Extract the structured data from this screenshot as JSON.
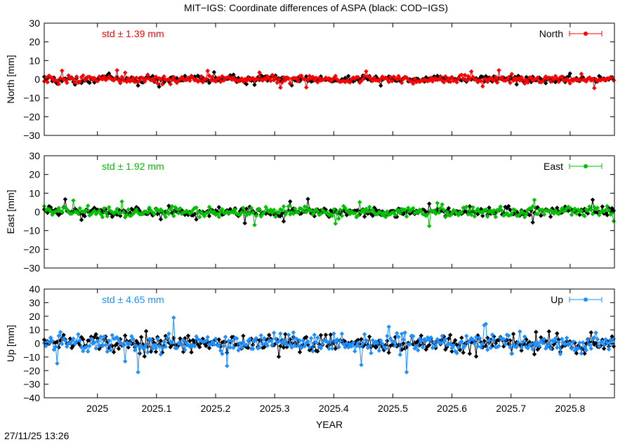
{
  "figure": {
    "title": "MIT−IGS: Coordinate differences of ASPA (black: COD−IGS)",
    "timestamp": "27/11/25 13:26",
    "xlabel": "YEAR"
  },
  "chart_data": [
    {
      "type": "line",
      "panel": "north",
      "ylabel": "North [mm]",
      "ylim": [
        -30,
        30
      ],
      "yticks": [
        30,
        20,
        10,
        0,
        -10,
        -20,
        -30
      ],
      "ytick_labels": [
        "30",
        "20",
        "10",
        "0",
        "−10",
        "−20",
        "−30"
      ],
      "xlim": [
        2024.91,
        2025.875
      ],
      "xticks": [
        2025,
        2025.1,
        2025.2,
        2025.3,
        2025.4,
        2025.5,
        2025.6,
        2025.7,
        2025.8
      ],
      "xtick_labels": [
        "2025",
        "2025.1",
        "2025.2",
        "2025.3",
        "2025.4",
        "2025.5",
        "2025.6",
        "2025.7",
        "2025.8"
      ],
      "show_xtick_labels": false,
      "annotation": "std ± 1.39 mm",
      "legend": "top-right",
      "grid": false,
      "series": [
        {
          "name": "",
          "color": "#000000",
          "amplitude": 1.3,
          "spike_max": 4
        },
        {
          "name": "North",
          "color": "#ff0000",
          "amplitude": 1.4,
          "spike_max": 5
        }
      ]
    },
    {
      "type": "line",
      "panel": "east",
      "ylabel": "East [mm]",
      "ylim": [
        -30,
        30
      ],
      "yticks": [
        30,
        20,
        10,
        0,
        -10,
        -20,
        -30
      ],
      "ytick_labels": [
        "30",
        "20",
        "10",
        "0",
        "−10",
        "−20",
        "−30"
      ],
      "xlim": [
        2024.91,
        2025.875
      ],
      "xticks": [
        2025,
        2025.1,
        2025.2,
        2025.3,
        2025.4,
        2025.5,
        2025.6,
        2025.7,
        2025.8
      ],
      "xtick_labels": [
        "2025",
        "2025.1",
        "2025.2",
        "2025.3",
        "2025.4",
        "2025.5",
        "2025.6",
        "2025.7",
        "2025.8"
      ],
      "show_xtick_labels": false,
      "annotation": "std ± 1.92 mm",
      "legend": "top-right",
      "grid": false,
      "series": [
        {
          "name": "",
          "color": "#000000",
          "amplitude": 1.6,
          "spike_max": 7
        },
        {
          "name": "East",
          "color": "#00c000",
          "amplitude": 1.9,
          "spike_max": 8
        }
      ]
    },
    {
      "type": "line",
      "panel": "up",
      "ylabel": "Up [mm]",
      "ylim": [
        -40,
        40
      ],
      "yticks": [
        40,
        30,
        20,
        10,
        0,
        -10,
        -20,
        -30,
        -40
      ],
      "ytick_labels": [
        "40",
        "30",
        "20",
        "10",
        "0",
        "−10",
        "−20",
        "−30",
        "−40"
      ],
      "xlim": [
        2024.91,
        2025.875
      ],
      "xticks": [
        2025,
        2025.1,
        2025.2,
        2025.3,
        2025.4,
        2025.5,
        2025.6,
        2025.7,
        2025.8
      ],
      "xtick_labels": [
        "2025",
        "2025.1",
        "2025.2",
        "2025.3",
        "2025.4",
        "2025.5",
        "2025.6",
        "2025.7",
        "2025.8"
      ],
      "show_xtick_labels": true,
      "annotation": "std ± 4.65 mm",
      "legend": "top-right",
      "grid": false,
      "series": [
        {
          "name": "",
          "color": "#000000",
          "amplitude": 4.2,
          "spike_max": 10
        },
        {
          "name": "Up",
          "color": "#1e8fff",
          "amplitude": 4.6,
          "spike_max": 22
        }
      ]
    }
  ]
}
